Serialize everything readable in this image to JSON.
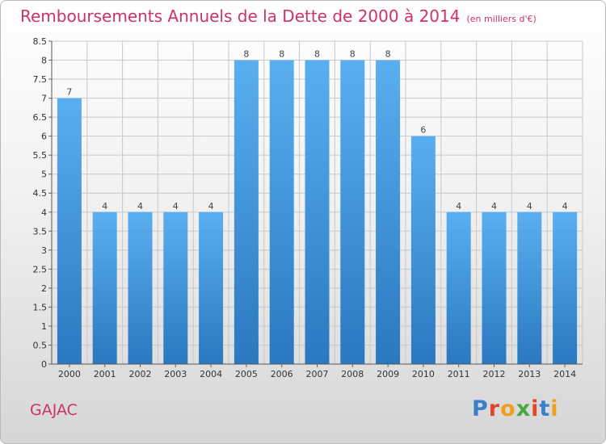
{
  "chart_data": {
    "type": "bar",
    "title": "Remboursements Annuels de la Dette de 2000 à 2014",
    "unit": "(en milliers d'€)",
    "categories": [
      "2000",
      "2001",
      "2002",
      "2003",
      "2004",
      "2005",
      "2006",
      "2007",
      "2008",
      "2009",
      "2010",
      "2011",
      "2012",
      "2013",
      "2014"
    ],
    "values": [
      7,
      4,
      4,
      4,
      4,
      8,
      8,
      8,
      8,
      8,
      6,
      4,
      4,
      4,
      4
    ],
    "ylim": [
      0,
      8.5
    ],
    "yticks": [
      0,
      0.5,
      1,
      1.5,
      2,
      2.5,
      3,
      3.5,
      4,
      4.5,
      5,
      5.5,
      6,
      6.5,
      7,
      7.5,
      8,
      8.5
    ],
    "grid": true,
    "xlabel": "",
    "ylabel": ""
  },
  "commune": "GAJAC",
  "logo": {
    "letters": [
      {
        "char": "P",
        "color": "#3a7fc8"
      },
      {
        "char": "r",
        "color": "#e2442c"
      },
      {
        "char": "o",
        "color": "#f0a020"
      },
      {
        "char": "x",
        "color": "#4aa83e"
      },
      {
        "char": "i",
        "color": "#e2442c"
      },
      {
        "char": "t",
        "color": "#3a7fc8"
      },
      {
        "char": "i",
        "color": "#f0a020"
      }
    ]
  },
  "colors": {
    "title": "#cc3366",
    "bar_top": "#5aaff0",
    "bar_bottom": "#2a78c0",
    "grid": "#c8c8c8"
  }
}
